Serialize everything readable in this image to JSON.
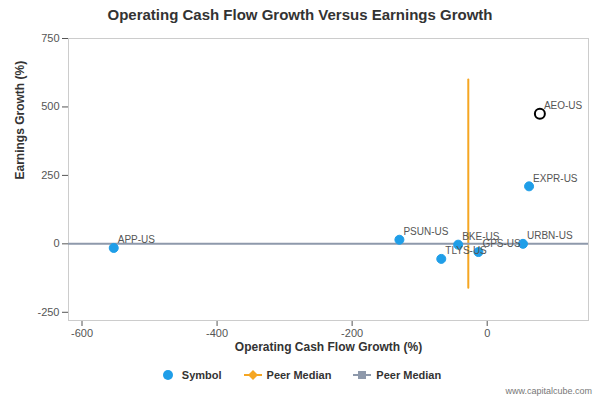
{
  "chart_data": {
    "type": "scatter",
    "title": "Operating Cash Flow Growth Versus Earnings Growth",
    "x_label": "Operating Cash Flow Growth (%)",
    "y_label": "Earnings Growth (%)",
    "source": "www.capitalcube.com",
    "xlim": [
      -620,
      150
    ],
    "xticks": [
      -600,
      -400,
      -200,
      0
    ],
    "ylim": [
      -280,
      750
    ],
    "yticks": [
      -250,
      0,
      250,
      500,
      750
    ],
    "grid": false,
    "legend": "bottom",
    "series": [
      {
        "name": "Symbol",
        "type": "scatter",
        "color": "#1f9ee8",
        "marker": "circle",
        "x": [
          -553,
          -130,
          -43,
          -68,
          -13,
          53,
          62
        ],
        "y": [
          -15,
          15,
          -3,
          -55,
          -30,
          0,
          210
        ],
        "labels": [
          "APP-US",
          "PSUN-US",
          "BKE-US",
          "TLYS-US",
          "GPS-US",
          "URBN-US",
          "EXPR-US"
        ]
      },
      {
        "type": "scatter",
        "color": "#000000",
        "marker": "open-circle",
        "x": [
          78
        ],
        "y": [
          475
        ],
        "labels": [
          "AEO-US"
        ]
      },
      {
        "name": "Peer Median",
        "type": "line",
        "color": "#f5a623",
        "marker": "diamond",
        "x": [
          -28,
          -28
        ],
        "y": [
          -160,
          600
        ]
      },
      {
        "name": "Peer Median",
        "type": "line",
        "color": "#8e99ab",
        "marker": "square",
        "x": [
          -620,
          150
        ],
        "y": [
          0,
          0
        ]
      }
    ]
  }
}
